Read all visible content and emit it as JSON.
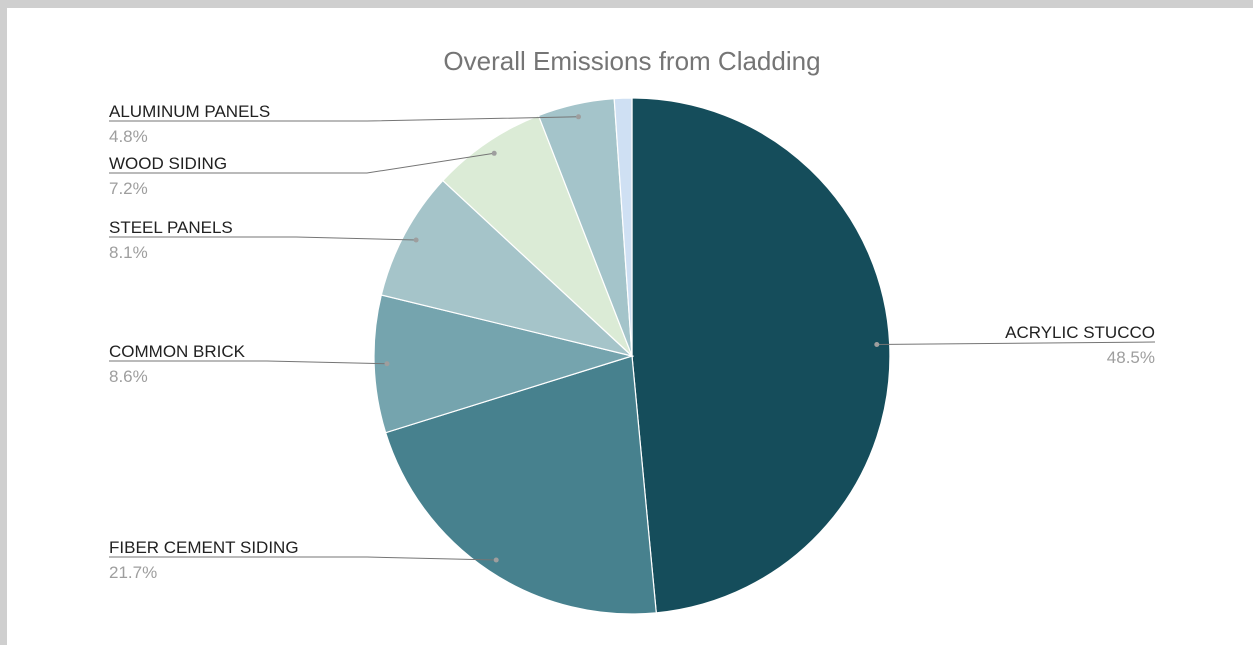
{
  "chart_data": {
    "type": "pie",
    "title": "Overall Emissions from Cladding",
    "slices": [
      {
        "label": "ACRYLIC STUCCO",
        "value": 48.5,
        "display": "48.5%",
        "color": "#154d5b"
      },
      {
        "label": "FIBER CEMENT SIDING",
        "value": 21.7,
        "display": "21.7%",
        "color": "#47818e"
      },
      {
        "label": "COMMON BRICK",
        "value": 8.6,
        "display": "8.6%",
        "color": "#75a4ae"
      },
      {
        "label": "STEEL PANELS",
        "value": 8.1,
        "display": "8.1%",
        "color": "#a5c4c9"
      },
      {
        "label": "WOOD SIDING",
        "value": 7.2,
        "display": "7.2%",
        "color": "#dbebd6"
      },
      {
        "label": "ALUMINUM PANELS",
        "value": 4.8,
        "display": "4.8%",
        "color": "#a4c4ca"
      },
      {
        "label": "",
        "value": 1.1,
        "display": "",
        "color": "#cfe0f3"
      }
    ]
  }
}
